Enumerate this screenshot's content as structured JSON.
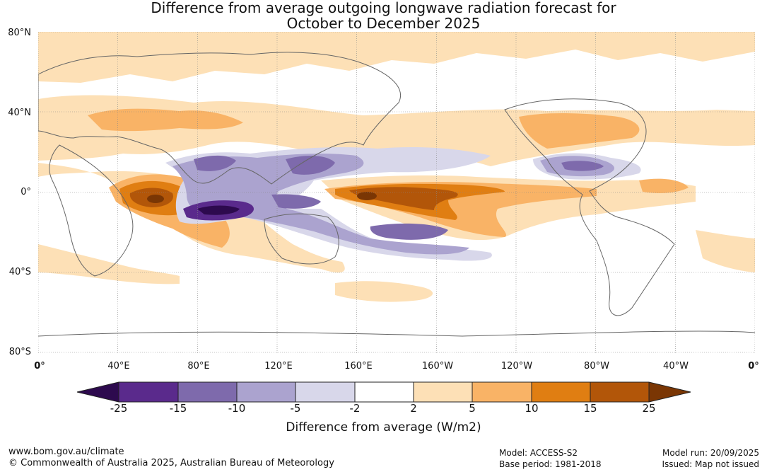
{
  "title": {
    "line1": "Difference from average outgoing longwave radiation forecast for",
    "line2": "October to December 2025"
  },
  "axes": {
    "lat_labels": [
      "80°N",
      "40°N",
      "0°",
      "40°S",
      "80°S"
    ],
    "lon_labels": [
      "0°",
      "40°E",
      "80°E",
      "120°E",
      "160°E",
      "160°W",
      "120°W",
      "80°W",
      "40°W",
      "0°"
    ]
  },
  "colorbar": {
    "ticks": [
      "-25",
      "-15",
      "-10",
      "-5",
      "-2",
      "2",
      "5",
      "10",
      "15",
      "25"
    ],
    "colors": [
      "#2d0a4e",
      "#5a2a8c",
      "#7e6aac",
      "#aba3cf",
      "#d8d7ea",
      "#ffffff",
      "#fde0b6",
      "#f9b366",
      "#e07e12",
      "#b25609",
      "#7a3604"
    ],
    "label": "Difference from average (W/m2)"
  },
  "footer": {
    "website": "www.bom.gov.au/climate",
    "copyright": "© Commonwealth of Australia 2025, Australian Bureau of Meteorology",
    "model": "Model: ACCESS-S2",
    "base_period": "Base period: 1981-2018",
    "model_run": "Model run: 20/09/2025",
    "issued": "Issued: Map not issued"
  }
}
